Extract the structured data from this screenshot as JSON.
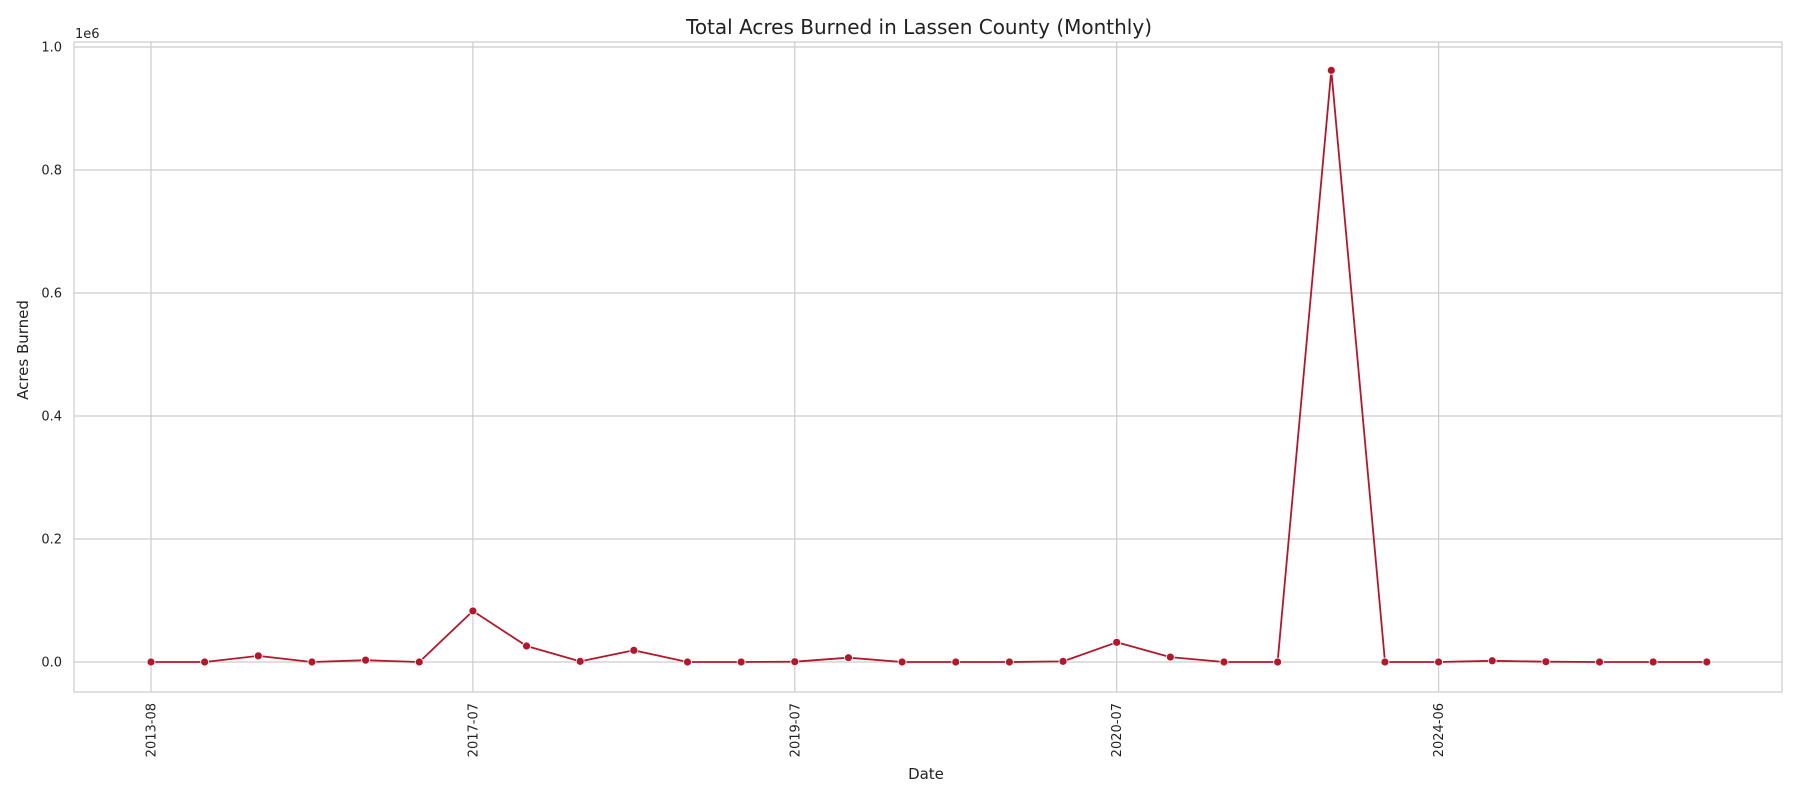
{
  "chart_data": {
    "type": "line",
    "title": "Total Acres Burned in Lassen County (Monthly)",
    "xlabel": "Date",
    "ylabel": "Acres Burned",
    "y_offset_label": "1e6",
    "x_tick_labels": [
      "2013-08",
      "2017-07",
      "2019-07",
      "2020-07",
      "2024-06"
    ],
    "y_ticks": [
      0.0,
      0.2,
      0.4,
      0.6,
      0.8,
      1.0
    ],
    "y_tick_labels": [
      "0.0",
      "0.2",
      "0.4",
      "0.6",
      "0.8",
      "1.0"
    ],
    "ylim": [
      -50000,
      1010000
    ],
    "grid": true,
    "series": [
      {
        "color": "#b2182b",
        "values": [
          0,
          0,
          10000,
          0,
          3000,
          0,
          83000,
          26000,
          1000,
          19000,
          0,
          0,
          500,
          7000,
          0,
          0,
          0,
          1000,
          32000,
          8000,
          0,
          0,
          962000,
          0,
          0,
          2000,
          500,
          0,
          0,
          0
        ]
      }
    ]
  }
}
